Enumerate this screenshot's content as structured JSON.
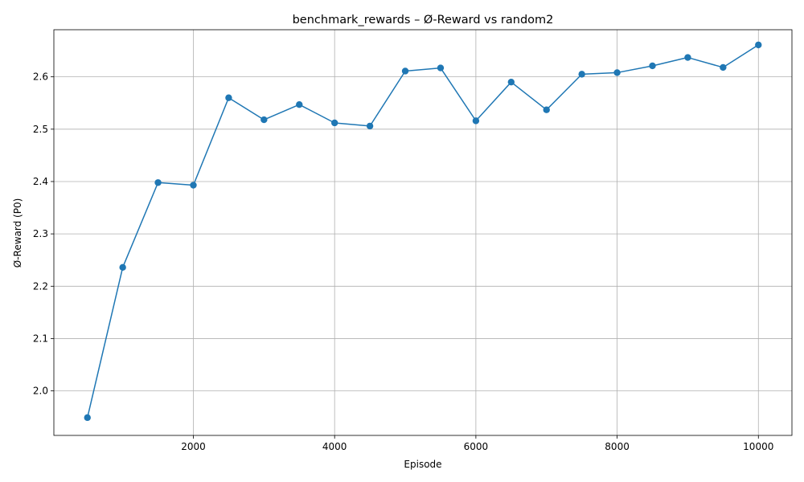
{
  "chart_data": {
    "type": "line",
    "title": "benchmark_rewards – Ø-Reward vs random2",
    "xlabel": "Episode",
    "ylabel": "Ø-Reward (P0)",
    "xlim": [
      25,
      10475
    ],
    "ylim": [
      1.915,
      2.69
    ],
    "xticks": [
      2000,
      4000,
      6000,
      8000,
      10000
    ],
    "xtick_labels": [
      "2000",
      "4000",
      "6000",
      "8000",
      "10000"
    ],
    "yticks": [
      2.0,
      2.1,
      2.2,
      2.3,
      2.4,
      2.5,
      2.6
    ],
    "ytick_labels": [
      "2.0",
      "2.1",
      "2.2",
      "2.3",
      "2.4",
      "2.5",
      "2.6"
    ],
    "grid": true,
    "color": "#1f77b4",
    "marker": "circle",
    "x": [
      500,
      1000,
      1500,
      2000,
      2500,
      3000,
      3500,
      4000,
      4500,
      5000,
      5500,
      6000,
      6500,
      7000,
      7500,
      8000,
      8500,
      9000,
      9500,
      10000
    ],
    "y": [
      1.949,
      2.236,
      2.398,
      2.393,
      2.56,
      2.518,
      2.547,
      2.512,
      2.506,
      2.611,
      2.617,
      2.516,
      2.59,
      2.537,
      2.605,
      2.608,
      2.621,
      2.637,
      2.618,
      2.661
    ]
  }
}
